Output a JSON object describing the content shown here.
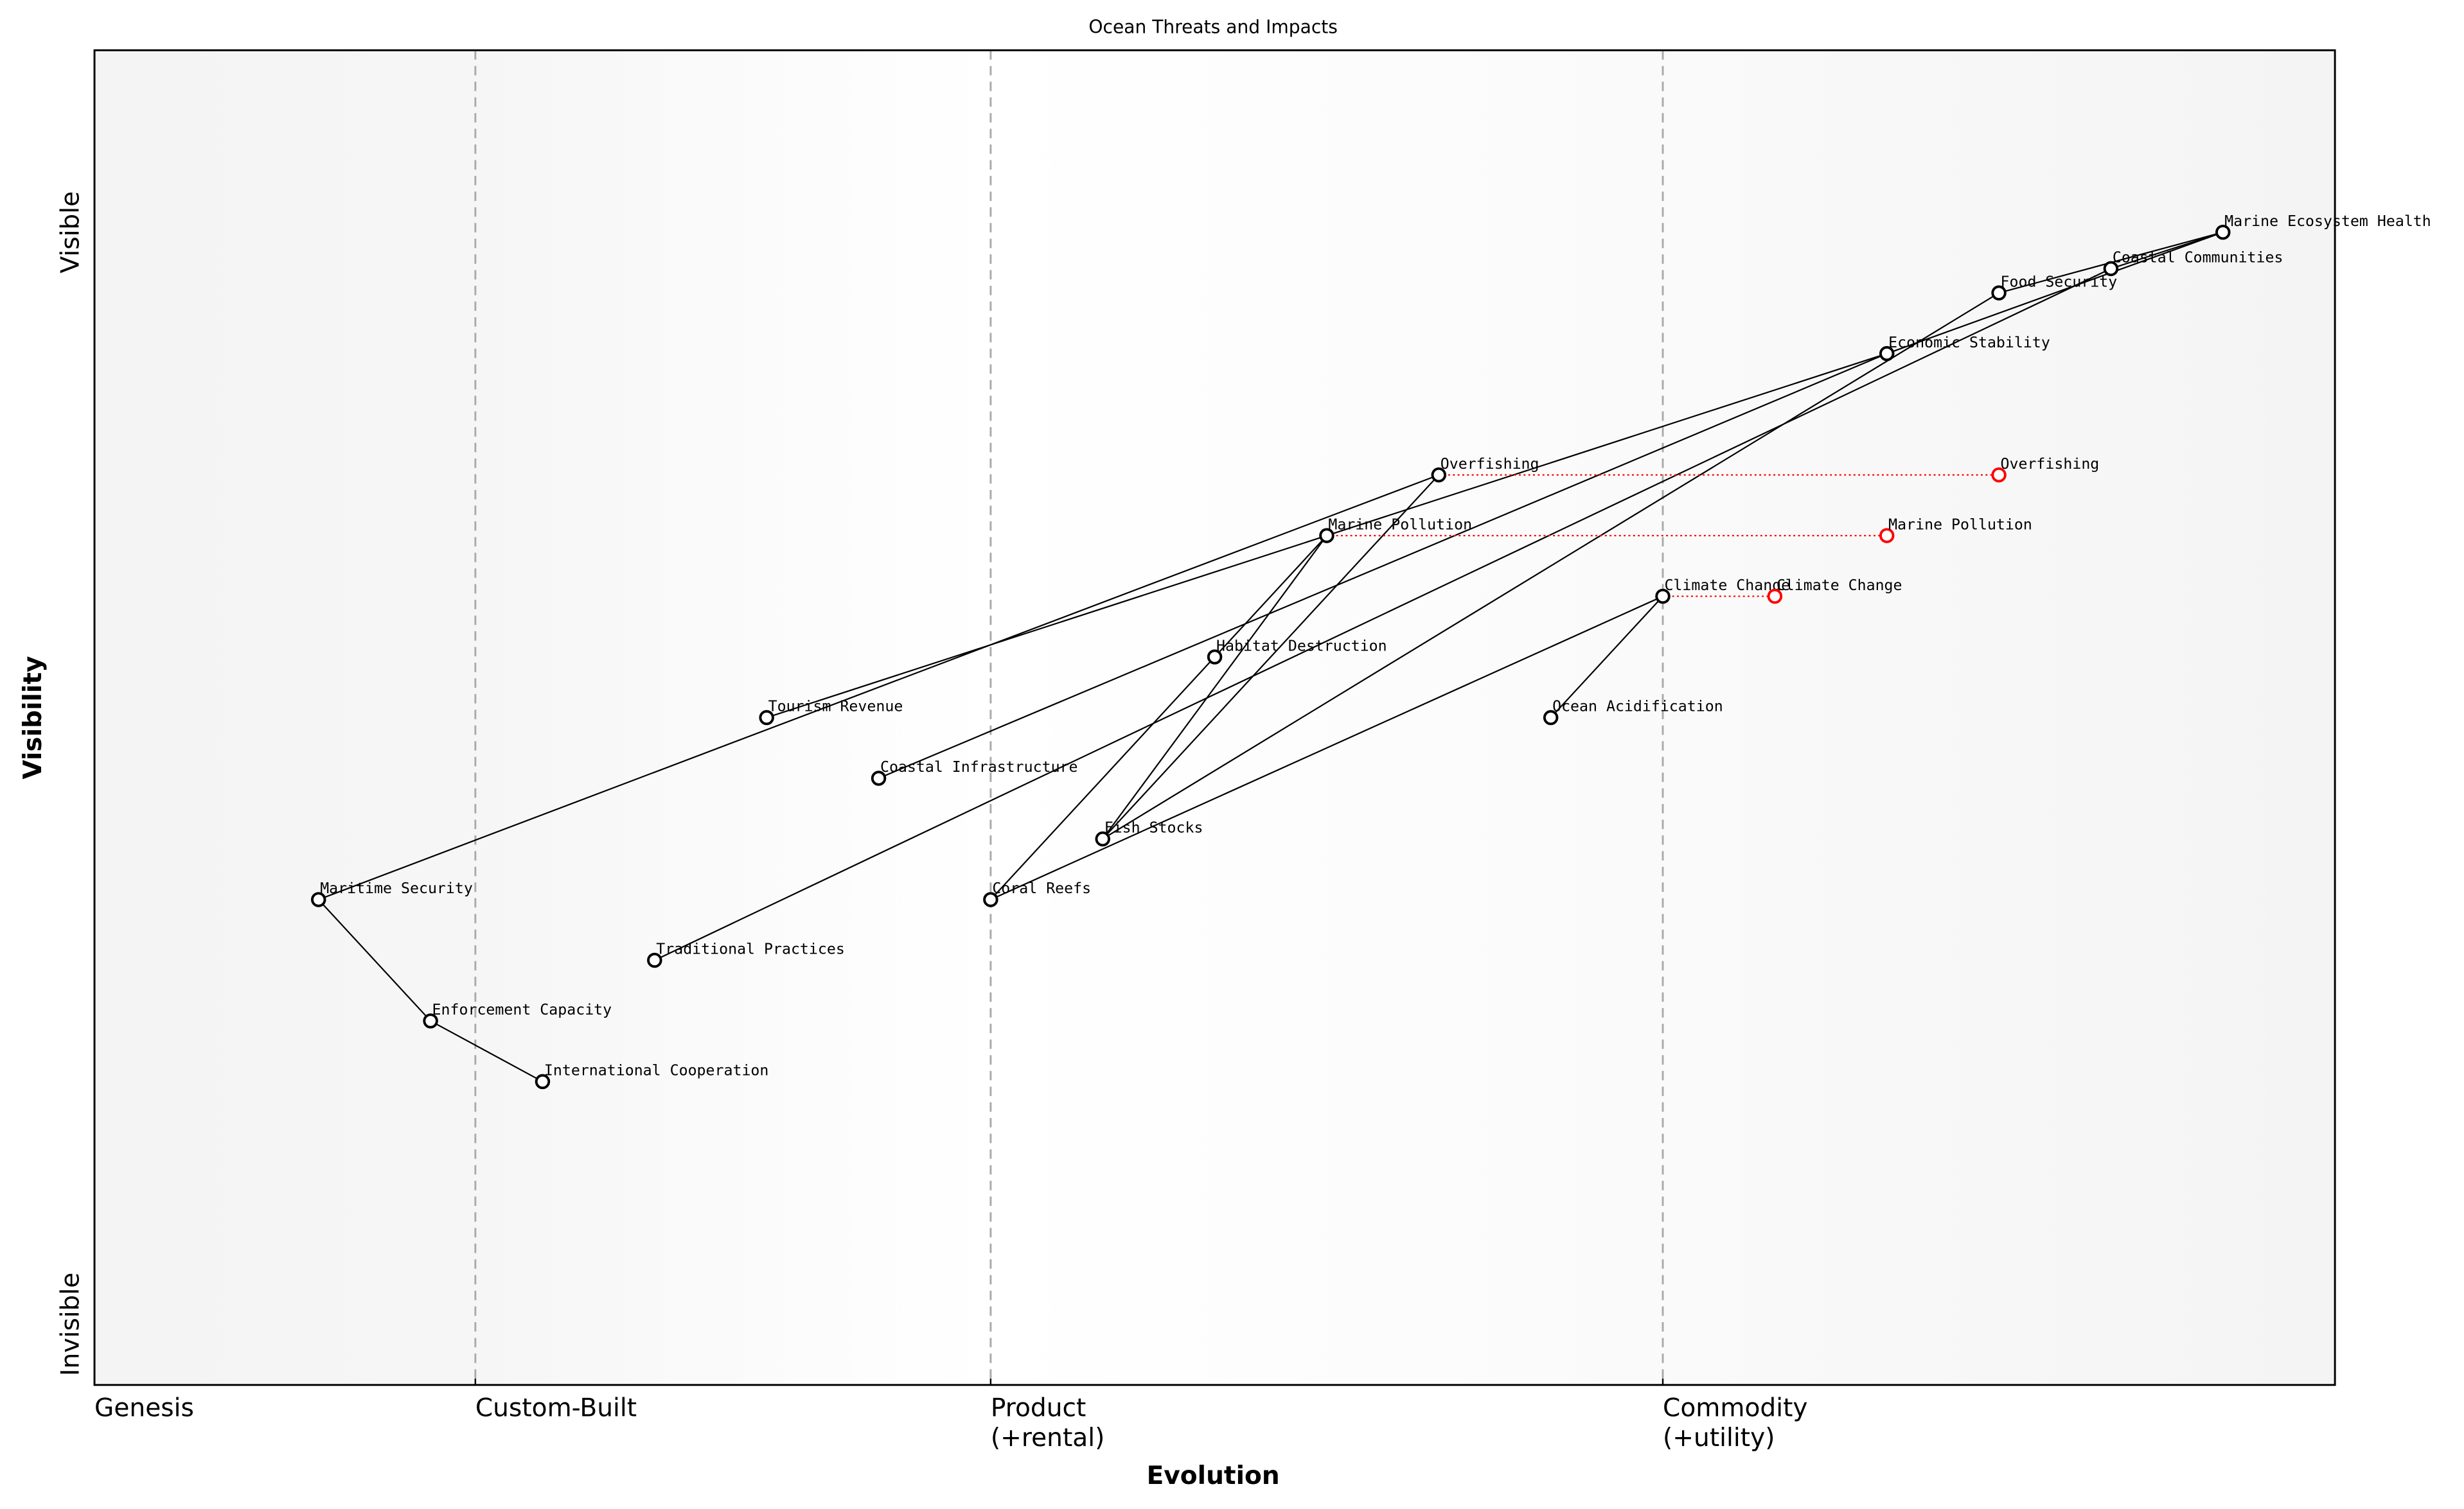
{
  "chart_data": {
    "type": "scatter",
    "subtype": "wardley-map",
    "title": "Ocean Threats and Impacts",
    "xlabel": "Evolution",
    "ylabel": "Visibility",
    "xlim": [
      0,
      1
    ],
    "ylim": [
      0,
      1.1
    ],
    "grid": false,
    "x_ticks": [
      {
        "value": 0.0,
        "label": "Genesis"
      },
      {
        "value": 0.17,
        "label": "Custom-Built"
      },
      {
        "value": 0.4,
        "label": "Product\n(+rental)"
      },
      {
        "value": 0.7,
        "label": "Commodity\n(+utility)"
      }
    ],
    "y_ticks": [
      {
        "value": 0.05,
        "label": "Invisible"
      },
      {
        "value": 0.95,
        "label": "Visible"
      }
    ],
    "stage_dividers": [
      0.17,
      0.4,
      0.7
    ],
    "colors": {
      "node": "#000000",
      "evolved": "#ff0000",
      "divider": "#aaaaaa",
      "band_edge": "#f5f5f5",
      "band_mid": "#ffffff"
    },
    "nodes": [
      {
        "name": "Marine Ecosystem Health",
        "x": 0.95,
        "y": 0.95
      },
      {
        "name": "Coastal Communities",
        "x": 0.9,
        "y": 0.92
      },
      {
        "name": "Food Security",
        "x": 0.85,
        "y": 0.9
      },
      {
        "name": "Economic Stability",
        "x": 0.8,
        "y": 0.85
      },
      {
        "name": "Overfishing",
        "x": 0.6,
        "y": 0.75
      },
      {
        "name": "Marine Pollution",
        "x": 0.55,
        "y": 0.7
      },
      {
        "name": "Climate Change",
        "x": 0.7,
        "y": 0.65
      },
      {
        "name": "Habitat Destruction",
        "x": 0.5,
        "y": 0.6
      },
      {
        "name": "Ocean Acidification",
        "x": 0.65,
        "y": 0.55
      },
      {
        "name": "Tourism Revenue",
        "x": 0.3,
        "y": 0.55
      },
      {
        "name": "Coastal Infrastructure",
        "x": 0.35,
        "y": 0.5
      },
      {
        "name": "Fish Stocks",
        "x": 0.45,
        "y": 0.45
      },
      {
        "name": "Coral Reefs",
        "x": 0.4,
        "y": 0.4
      },
      {
        "name": "Maritime Security",
        "x": 0.1,
        "y": 0.4
      },
      {
        "name": "Traditional Practices",
        "x": 0.25,
        "y": 0.35
      },
      {
        "name": "Enforcement Capacity",
        "x": 0.15,
        "y": 0.3
      },
      {
        "name": "International Cooperation",
        "x": 0.2,
        "y": 0.25
      }
    ],
    "evolved_nodes": [
      {
        "name": "Overfishing",
        "from_x": 0.6,
        "x": 0.85,
        "y": 0.75
      },
      {
        "name": "Marine Pollution",
        "from_x": 0.55,
        "x": 0.8,
        "y": 0.7
      },
      {
        "name": "Climate Change",
        "from_x": 0.7,
        "x": 0.75,
        "y": 0.65
      }
    ],
    "edges": [
      [
        "Marine Ecosystem Health",
        "Coastal Communities"
      ],
      [
        "Marine Ecosystem Health",
        "Food Security"
      ],
      [
        "Marine Ecosystem Health",
        "Economic Stability"
      ],
      [
        "Economic Stability",
        "Marine Pollution"
      ],
      [
        "Marine Pollution",
        "Tourism Revenue"
      ],
      [
        "Economic Stability",
        "Coastal Infrastructure"
      ],
      [
        "Food Security",
        "Fish Stocks"
      ],
      [
        "Coastal Communities",
        "Traditional Practices"
      ],
      [
        "Climate Change",
        "Coral Reefs"
      ],
      [
        "Climate Change",
        "Ocean Acidification"
      ],
      [
        "Overfishing",
        "Maritime Security"
      ],
      [
        "Overfishing",
        "Fish Stocks"
      ],
      [
        "Marine Pollution",
        "Fish Stocks"
      ],
      [
        "Marine Pollution",
        "Habitat Destruction"
      ],
      [
        "Habitat Destruction",
        "Coral Reefs"
      ],
      [
        "Maritime Security",
        "Enforcement Capacity"
      ],
      [
        "Enforcement Capacity",
        "International Cooperation"
      ]
    ]
  }
}
